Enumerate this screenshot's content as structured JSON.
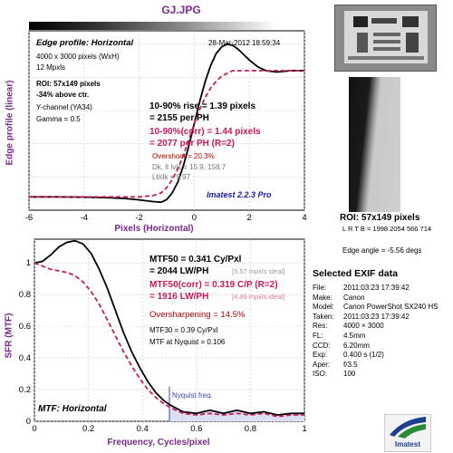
{
  "header": {
    "title": "GJ.JPG"
  },
  "colors": {
    "original": "#000000",
    "corrected": "#cc1a5a",
    "label_purple": "#7a2a8a",
    "nyquist_fill": "#dde0f4",
    "nyquist_line": "#3a4ab0"
  },
  "edge_panel": {
    "title": "Edge profile: Horizontal",
    "date": "28-Mar-2012 18:59:34",
    "size": "4000 x 3000 pixels (WxH)",
    "mpxls": "12 Mpxls",
    "roi_line": "ROI: 57x149 pixels",
    "above": "-34% above ctr.",
    "channel": "Y-channel  (YA34)",
    "gamma": "Gamma = 0.5",
    "rise": "10-90% rise = 1.39 pixels",
    "rise_ph": "= 2155 per PH",
    "rise_corr": "10-90%(corr) = 1.44 pixels",
    "rise_corr_ph": "= 2077 per PH  (R=2)",
    "overshoot": "Overshoot = 20.3%",
    "dk": "Dk, lt lvls = 15.9, 158.7",
    "ltdk": "Lt/dk = 9.97",
    "version": "Imatest 2.2.3 Pro",
    "ylabel": "Edge profile (linear)",
    "xlabel": "Pixels (Horizontal)"
  },
  "mtf_panel": {
    "title": "MTF: Horizontal",
    "mtf50": "MTF50 = 0.341 Cy/Pxl",
    "mtf50_lw": "= 2044 LW/PH",
    "mtf50_ideal": "[5.57 mpxls ideal]",
    "mtf50corr": "MTF50(corr) = 0.319 C/P  (R=2)",
    "mtf50corr_lw": "= 1916 LW/PH",
    "mtf50corr_ideal": "[4.89 mpxls ideal]",
    "oversharpening": "Oversharpening = 14.5%",
    "mtf30": "MTF30 = 0.39 Cy/Pxl",
    "nyquist_mtf": "MTF at Nyquist = 0.106",
    "nyquist_label": "Nyquist freq.",
    "ylabel": "SFR (MTF)",
    "xlabel": "Frequency, Cycles/pixel"
  },
  "roi_section": {
    "label": "ROI: 57x149 pixels",
    "lrtb": "L R  T B = 1998 2054  566 714",
    "edge_angle": "Edge angle = -5.56 degs"
  },
  "exif": {
    "title": "Selected EXIF data",
    "rows": [
      [
        "File:",
        "2011:03:23 17:39:42"
      ],
      [
        "Make:",
        "Canon"
      ],
      [
        "Model:",
        "Canon PowerShot SX240 HS"
      ],
      [
        "Taken:",
        "2011:03:23 17:39:42"
      ],
      [
        "Res:",
        "4000 × 3000"
      ],
      [
        "FL:",
        "4.5mm"
      ],
      [
        "CCD:",
        "6.20mm"
      ],
      [
        "Exp:",
        "0.400 s  (1/2)"
      ],
      [
        "Aper:",
        "f/3.5"
      ],
      [
        "ISO:",
        "100"
      ]
    ]
  },
  "logo": {
    "text": "Imatest"
  },
  "chart_data": [
    {
      "type": "line",
      "title": "Edge profile: Horizontal",
      "xlabel": "Pixels (Horizontal)",
      "ylabel": "Edge profile (linear)",
      "xlim": [
        -6,
        4
      ],
      "xticks": [
        -6,
        -4,
        -2,
        0,
        2,
        4
      ],
      "yticks": [],
      "grid": true,
      "series": [
        {
          "style": "solid",
          "x": [
            -6,
            -5,
            -4,
            -3,
            -2.5,
            -2,
            -1.5,
            -1.2,
            -1,
            -0.8,
            -0.6,
            -0.4,
            -0.2,
            0,
            0.2,
            0.4,
            0.6,
            0.8,
            1.0,
            1.2,
            1.4,
            1.6,
            1.8,
            2.0,
            2.3,
            2.6,
            3.0,
            3.5,
            4.0
          ],
          "y": [
            0.05,
            0.05,
            0.048,
            0.043,
            0.038,
            0.028,
            0.015,
            0.01,
            0.03,
            0.08,
            0.16,
            0.28,
            0.43,
            0.6,
            0.77,
            0.92,
            1.04,
            1.13,
            1.18,
            1.2,
            1.19,
            1.16,
            1.12,
            1.08,
            1.03,
            1.0,
            0.99,
            1.0,
            1.0
          ]
        },
        {
          "style": "dashed",
          "x": [
            -6,
            -5,
            -4,
            -3,
            -2.5,
            -2,
            -1.5,
            -1.2,
            -1,
            -0.8,
            -0.6,
            -0.4,
            -0.2,
            0,
            0.2,
            0.4,
            0.6,
            0.8,
            1.0,
            1.2,
            1.4,
            1.6,
            1.8,
            2.0,
            2.3,
            2.6,
            3.0,
            3.5,
            4.0
          ],
          "y": [
            0.05,
            0.05,
            0.05,
            0.05,
            0.05,
            0.05,
            0.06,
            0.08,
            0.12,
            0.18,
            0.26,
            0.36,
            0.48,
            0.6,
            0.71,
            0.8,
            0.87,
            0.92,
            0.96,
            0.98,
            1.0,
            1.0,
            1.0,
            1.0,
            1.0,
            1.0,
            1.0,
            1.0,
            1.0
          ]
        }
      ]
    },
    {
      "type": "line",
      "title": "MTF: Horizontal",
      "xlabel": "Frequency, Cycles/pixel",
      "ylabel": "SFR (MTF)",
      "xlim": [
        0,
        1
      ],
      "ylim": [
        0,
        1.15
      ],
      "xticks": [
        0,
        0.2,
        0.4,
        0.6,
        0.8,
        1
      ],
      "yticks": [
        0,
        0.2,
        0.4,
        0.6,
        0.8,
        1
      ],
      "grid": true,
      "nyquist": 0.5,
      "series": [
        {
          "style": "solid",
          "x": [
            0,
            0.03,
            0.06,
            0.09,
            0.12,
            0.15,
            0.18,
            0.21,
            0.24,
            0.27,
            0.3,
            0.33,
            0.36,
            0.39,
            0.42,
            0.45,
            0.48,
            0.5,
            0.55,
            0.6,
            0.65,
            0.7,
            0.75,
            0.8,
            0.85,
            0.9,
            0.95,
            1.0
          ],
          "y": [
            1.0,
            1.01,
            1.05,
            1.1,
            1.13,
            1.14,
            1.12,
            1.06,
            0.96,
            0.84,
            0.7,
            0.56,
            0.44,
            0.34,
            0.25,
            0.18,
            0.13,
            0.106,
            0.06,
            0.05,
            0.07,
            0.05,
            0.07,
            0.05,
            0.06,
            0.04,
            0.05,
            0.05
          ]
        },
        {
          "style": "dashed",
          "x": [
            0,
            0.03,
            0.06,
            0.09,
            0.12,
            0.15,
            0.18,
            0.21,
            0.24,
            0.27,
            0.3,
            0.33,
            0.36,
            0.39,
            0.42,
            0.45,
            0.48,
            0.5,
            0.55,
            0.6,
            0.65,
            0.7,
            0.75,
            0.8,
            0.85,
            0.9,
            0.95,
            1.0
          ],
          "y": [
            1.0,
            0.98,
            0.96,
            0.95,
            0.94,
            0.92,
            0.88,
            0.82,
            0.74,
            0.64,
            0.54,
            0.44,
            0.35,
            0.27,
            0.2,
            0.15,
            0.11,
            0.09,
            0.05,
            0.04,
            0.05,
            0.04,
            0.05,
            0.04,
            0.05,
            0.03,
            0.04,
            0.04
          ]
        }
      ]
    }
  ]
}
